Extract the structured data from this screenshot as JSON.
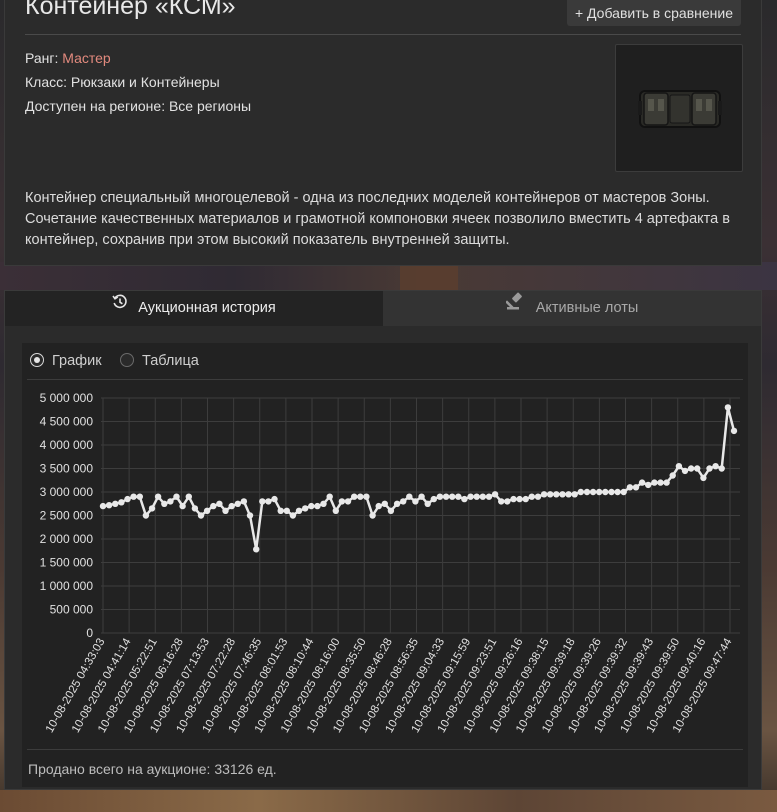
{
  "item": {
    "title": "Контейнер «КСМ»",
    "compare_label": "+ Добавить в сравнение",
    "rank_label": "Ранг:",
    "rank_value": "Мастер",
    "class_line": "Класс: Рюкзаки и Контейнеры",
    "region_line": "Доступен на регионе: Все регионы",
    "description": "Контейнер специальный многоцелевой - одна из последних моделей контейнеров от мастеров Зоны. Сочетание качественных материалов и грамотной компоновки ячеек позволило вместить 4 артефакта в контейнер, сохранив при этом высокий показатель внутренней защиты.",
    "colors": {
      "rank": "#e38a7e"
    }
  },
  "tabs": [
    {
      "label": "Аукционная история",
      "icon": "history-icon",
      "active": true
    },
    {
      "label": "Активные лоты",
      "icon": "gavel-icon",
      "active": false
    }
  ],
  "view_options": [
    {
      "label": "График",
      "selected": true
    },
    {
      "label": "Таблица",
      "selected": false
    }
  ],
  "sold_total": "Продано всего на аукционе: 33126 ед.",
  "chart_data": {
    "type": "line",
    "title": "",
    "xlabel": "",
    "ylabel": "",
    "ylim": [
      0,
      5000000
    ],
    "y_ticks": [
      "0",
      "500 000",
      "1 000 000",
      "1 500 000",
      "2 000 000",
      "2 500 000",
      "3 000 000",
      "3 500 000",
      "4 000 000",
      "4 500 000",
      "5 000 000"
    ],
    "x_tick_labels": [
      "10-08-2025 04:33:03",
      "10-08-2025 04:41:14",
      "10-08-2025 05:22:51",
      "10-08-2025 06:16:28",
      "10-08-2025 07:13:53",
      "10-08-2025 07:22:28",
      "10-08-2025 07:46:35",
      "10-08-2025 08:01:53",
      "10-08-2025 08:10:44",
      "10-08-2025 08:16:00",
      "10-08-2025 08:35:50",
      "10-08-2025 08:46:28",
      "10-08-2025 08:56:35",
      "10-08-2025 09:04:33",
      "10-08-2025 09:15:59",
      "10-08-2025 09:23:51",
      "10-08-2025 09:26:16",
      "10-08-2025 09:38:15",
      "10-08-2025 09:39:18",
      "10-08-2025 09:39:26",
      "10-08-2025 09:39:32",
      "10-08-2025 09:39:43",
      "10-08-2025 09:39:50",
      "10-08-2025 09:40:16",
      "10-08-2025 09:47:44"
    ],
    "grid": true,
    "series": [
      {
        "color": "#e8e8e8",
        "values": [
          2700000,
          2720000,
          2750000,
          2780000,
          2850000,
          2900000,
          2900000,
          2500000,
          2650000,
          2900000,
          2750000,
          2800000,
          2900000,
          2700000,
          2900000,
          2650000,
          2500000,
          2600000,
          2700000,
          2750000,
          2600000,
          2700000,
          2750000,
          2800000,
          2500000,
          1780000,
          2800000,
          2800000,
          2850000,
          2600000,
          2600000,
          2500000,
          2600000,
          2650000,
          2700000,
          2700000,
          2750000,
          2900000,
          2600000,
          2800000,
          2800000,
          2900000,
          2900000,
          2900000,
          2500000,
          2700000,
          2750000,
          2600000,
          2750000,
          2800000,
          2900000,
          2800000,
          2900000,
          2750000,
          2850000,
          2900000,
          2900000,
          2900000,
          2900000,
          2850000,
          2900000,
          2900000,
          2900000,
          2900000,
          2950000,
          2800000,
          2800000,
          2850000,
          2850000,
          2850000,
          2900000,
          2900000,
          2950000,
          2950000,
          2950000,
          2950000,
          2950000,
          2950000,
          3000000,
          3000000,
          3000000,
          3000000,
          3000000,
          3000000,
          3000000,
          3000000,
          3100000,
          3100000,
          3200000,
          3150000,
          3200000,
          3200000,
          3200000,
          3350000,
          3550000,
          3450000,
          3500000,
          3500000,
          3300000,
          3500000,
          3550000,
          3500000,
          4800000,
          4300000
        ]
      }
    ]
  }
}
